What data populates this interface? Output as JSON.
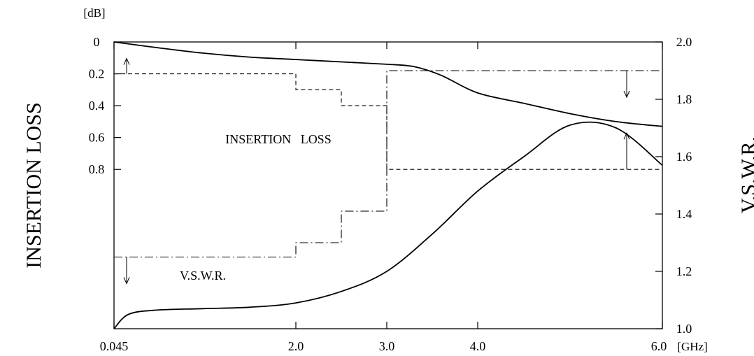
{
  "chart_data": {
    "type": "line",
    "x_unit": "[GHz]",
    "x_ticks": [
      "0.045",
      "2.0",
      "3.0",
      "4.0",
      "6.0"
    ],
    "x_tick_values": [
      0.045,
      2.0,
      3.0,
      4.0,
      6.0
    ],
    "left_axis": {
      "label": "INSERTION LOSS",
      "unit": "[dB]",
      "ticks": [
        "0",
        "0.2",
        "0.4",
        "0.6",
        "0.8"
      ],
      "tick_values": [
        0,
        0.2,
        0.4,
        0.6,
        0.8
      ],
      "range": [
        0,
        1.8
      ]
    },
    "right_axis": {
      "label": "V.S.W.R.",
      "ticks": [
        "1.0",
        "1.2",
        "1.4",
        "1.6",
        "1.8",
        "2.0"
      ],
      "tick_values": [
        1.0,
        1.2,
        1.4,
        1.6,
        1.8,
        2.0
      ],
      "range": [
        1.0,
        2.0
      ]
    },
    "grid": false,
    "series": [
      {
        "name": "INSERTION LOSS",
        "axis": "left",
        "style": "solid",
        "x": [
          0.045,
          0.5,
          1.0,
          1.5,
          2.0,
          2.5,
          3.0,
          3.3,
          3.6,
          4.0,
          4.5,
          5.0,
          5.5,
          6.0
        ],
        "values": [
          0.0,
          0.035,
          0.07,
          0.095,
          0.11,
          0.125,
          0.14,
          0.155,
          0.21,
          0.32,
          0.385,
          0.45,
          0.5,
          0.53
        ]
      },
      {
        "name": "V.S.W.R.",
        "axis": "right",
        "style": "solid",
        "x": [
          0.045,
          0.2,
          0.5,
          1.0,
          1.5,
          2.0,
          2.5,
          3.0,
          3.5,
          4.0,
          4.5,
          5.0,
          5.5,
          6.0
        ],
        "values": [
          1.0,
          1.05,
          1.065,
          1.07,
          1.075,
          1.09,
          1.13,
          1.2,
          1.33,
          1.48,
          1.6,
          1.71,
          1.7,
          1.57
        ]
      },
      {
        "name": "INSERTION LOSS",
        "axis": "left",
        "style": "dashed",
        "role": "specification limit",
        "step_edges": [
          0.045,
          2.0,
          2.5,
          3.0,
          6.0
        ],
        "values": [
          0.2,
          0.3,
          0.4,
          0.8
        ]
      },
      {
        "name": "V.S.W.R.",
        "axis": "right",
        "style": "dashdot",
        "role": "specification limit",
        "step_edges": [
          0.045,
          2.0,
          2.5,
          3.0,
          6.0
        ],
        "values": [
          1.25,
          1.3,
          1.41,
          1.9
        ]
      }
    ],
    "annotations": [
      {
        "text": "INSERTION   LOSS",
        "x": 1.35,
        "y": 0.62,
        "axis": "left"
      },
      {
        "text": "V.S.W.R.",
        "x": 0.8,
        "y": 1.33,
        "axis": "right"
      }
    ]
  }
}
